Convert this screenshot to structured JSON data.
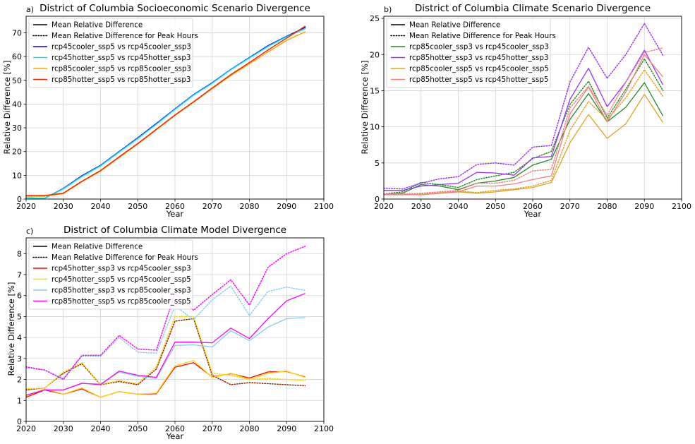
{
  "chart_data": [
    {
      "type": "line",
      "panel_label": "a)",
      "title": "District of Columbia Socioeconomic Scenario Divergence",
      "xlabel": "Year",
      "ylabel": "Relative Difference [%]",
      "xlim": [
        2020,
        2100
      ],
      "ylim": [
        0,
        77
      ],
      "xticks": [
        2020,
        2030,
        2040,
        2050,
        2060,
        2070,
        2080,
        2090,
        2100
      ],
      "yticks": [
        0,
        10,
        20,
        30,
        40,
        50,
        60,
        70
      ],
      "grid": true,
      "legend_position": "upper-left",
      "legend": [
        {
          "label": "Mean Relative Difference",
          "color": "#000000",
          "style": "solid"
        },
        {
          "label": "Mean Relative Difference for Peak Hours",
          "color": "#000000",
          "style": "dotted"
        },
        {
          "label": "rcp45cooler_ssp5 vs rcp45cooler_ssp3",
          "color": "#0000ff",
          "style": "solid"
        },
        {
          "label": "rcp45hotter_ssp5 vs rcp45hotter_ssp3",
          "color": "#00e5ee",
          "style": "solid"
        },
        {
          "label": "rcp85cooler_ssp5 vs rcp85cooler_ssp3",
          "color": "#ffa500",
          "style": "solid"
        },
        {
          "label": "rcp85hotter_ssp5 vs rcp85hotter_ssp3",
          "color": "#ff2200",
          "style": "solid"
        }
      ],
      "x": [
        2020,
        2025,
        2030,
        2035,
        2040,
        2045,
        2050,
        2055,
        2060,
        2065,
        2070,
        2075,
        2080,
        2085,
        2090,
        2095
      ],
      "series": [
        {
          "name": "rcp45cooler_ssp5 vs rcp45cooler_ssp3",
          "color": "#0000ff",
          "style": "solid",
          "values": [
            0.5,
            0.3,
            4.5,
            9.8,
            14.2,
            20.0,
            25.8,
            31.8,
            38.0,
            44.0,
            49.0,
            54.6,
            59.6,
            64.6,
            68.6,
            72.3
          ]
        },
        {
          "name": "rcp45cooler_ssp5 vs rcp45cooler_ssp3 (peak)",
          "color": "#0000ff",
          "style": "dotted",
          "values": [
            0.5,
            0.3,
            4.5,
            9.8,
            14.2,
            20.0,
            25.8,
            31.8,
            38.0,
            44.0,
            49.0,
            54.6,
            59.6,
            64.6,
            68.6,
            72.3
          ]
        },
        {
          "name": "rcp45hotter_ssp5 vs rcp45hotter_ssp3",
          "color": "#00e5ee",
          "style": "solid",
          "values": [
            0.5,
            0.3,
            4.3,
            9.5,
            14.0,
            19.8,
            25.5,
            31.5,
            37.8,
            43.8,
            48.8,
            54.5,
            59.4,
            64.3,
            68.4,
            71.8
          ]
        },
        {
          "name": "rcp45hotter_ssp5 vs rcp45hotter_ssp3 (peak)",
          "color": "#00e5ee",
          "style": "dotted",
          "values": [
            0.5,
            0.3,
            4.3,
            9.5,
            14.0,
            19.8,
            25.5,
            31.5,
            37.8,
            43.8,
            48.8,
            54.5,
            59.4,
            64.3,
            68.4,
            71.8
          ]
        },
        {
          "name": "rcp85cooler_ssp5 vs rcp85cooler_ssp3",
          "color": "#ffa500",
          "style": "solid",
          "values": [
            1.2,
            1.2,
            2.3,
            7.3,
            11.8,
            17.5,
            23.2,
            29.2,
            35.2,
            40.8,
            46.5,
            52.0,
            57.0,
            62.0,
            66.8,
            70.5
          ]
        },
        {
          "name": "rcp85cooler_ssp5 vs rcp85cooler_ssp3 (peak)",
          "color": "#ffa500",
          "style": "dotted",
          "values": [
            1.2,
            1.2,
            2.3,
            7.3,
            11.8,
            17.5,
            23.2,
            29.2,
            35.2,
            40.8,
            46.5,
            52.0,
            57.0,
            62.0,
            66.8,
            70.5
          ]
        },
        {
          "name": "rcp85hotter_ssp5 vs rcp85hotter_ssp3",
          "color": "#ff2200",
          "style": "solid",
          "values": [
            1.5,
            1.5,
            2.5,
            7.5,
            12.0,
            17.8,
            23.4,
            29.4,
            35.4,
            41.0,
            46.8,
            52.4,
            57.5,
            62.8,
            67.8,
            72.8
          ]
        },
        {
          "name": "rcp85hotter_ssp5 vs rcp85hotter_ssp3 (peak)",
          "color": "#ff2200",
          "style": "dotted",
          "values": [
            1.5,
            1.5,
            2.5,
            7.5,
            12.0,
            17.8,
            23.4,
            29.4,
            35.4,
            41.0,
            46.8,
            52.4,
            57.5,
            62.8,
            67.8,
            72.8
          ]
        }
      ]
    },
    {
      "type": "line",
      "panel_label": "b)",
      "title": "District of Columbia Climate Scenario Divergence",
      "xlabel": "Year",
      "ylabel": "Relative Difference [%]",
      "xlim": [
        2020,
        2100
      ],
      "ylim": [
        0,
        25.3
      ],
      "xticks": [
        2020,
        2030,
        2040,
        2050,
        2060,
        2070,
        2080,
        2090,
        2100
      ],
      "yticks": [
        0,
        5,
        10,
        15,
        20,
        25
      ],
      "grid": true,
      "legend_position": "upper-left",
      "legend": [
        {
          "label": "Mean Relative Difference",
          "color": "#000000",
          "style": "solid"
        },
        {
          "label": "Mean Relative Difference for Peak Hours",
          "color": "#000000",
          "style": "dotted"
        },
        {
          "label": "rcp85cooler_ssp3 vs rcp45cooler_ssp3",
          "color": "#228b22",
          "style": "solid"
        },
        {
          "label": "rcp85hotter_ssp3 vs rcp45hotter_ssp3",
          "color": "#9b30ff",
          "style": "solid"
        },
        {
          "label": "rcp85cooler_ssp5 vs rcp45cooler_ssp5",
          "color": "#daa520",
          "style": "solid"
        },
        {
          "label": "rcp85hotter_ssp5 vs rcp45hotter_ssp5",
          "color": "#f08080",
          "style": "solid"
        }
      ],
      "x": [
        2020,
        2025,
        2030,
        2035,
        2040,
        2045,
        2050,
        2055,
        2060,
        2065,
        2070,
        2075,
        2080,
        2085,
        2090,
        2095
      ],
      "series": [
        {
          "name": "rcp85cooler_ssp3 vs rcp45cooler_ssp3",
          "color": "#228b22",
          "style": "solid",
          "values": [
            0.6,
            0.8,
            2.0,
            1.8,
            1.3,
            2.2,
            2.5,
            3.0,
            4.7,
            5.5,
            11.0,
            14.6,
            10.7,
            12.7,
            16.1,
            11.5
          ]
        },
        {
          "name": "rcp85cooler_ssp3 vs rcp45cooler_ssp3 (peak)",
          "color": "#228b22",
          "style": "dotted",
          "values": [
            0.7,
            1.0,
            2.3,
            2.0,
            1.6,
            2.7,
            3.2,
            3.7,
            5.6,
            6.6,
            13.1,
            16.3,
            11.2,
            15.2,
            19.4,
            15.0
          ]
        },
        {
          "name": "rcp85hotter_ssp3 vs rcp45hotter_ssp3",
          "color": "#9b30ff",
          "style": "solid",
          "values": [
            1.2,
            1.2,
            1.8,
            2.0,
            2.2,
            3.7,
            3.6,
            3.3,
            5.7,
            5.9,
            13.8,
            18.1,
            12.8,
            16.2,
            20.6,
            15.8
          ]
        },
        {
          "name": "rcp85hotter_ssp3 vs rcp45hotter_ssp3 (peak)",
          "color": "#9b30ff",
          "style": "dotted",
          "values": [
            1.5,
            1.4,
            2.2,
            2.8,
            3.1,
            4.8,
            5.0,
            4.7,
            7.2,
            7.4,
            16.2,
            21.0,
            16.7,
            20.0,
            24.3,
            19.9
          ]
        },
        {
          "name": "rcp85cooler_ssp5 vs rcp45cooler_ssp5",
          "color": "#daa520",
          "style": "solid",
          "values": [
            0.6,
            0.6,
            0.6,
            0.8,
            1.0,
            0.8,
            1.0,
            1.3,
            1.6,
            2.3,
            7.8,
            11.7,
            8.4,
            10.4,
            14.5,
            10.6
          ]
        },
        {
          "name": "rcp85cooler_ssp5 vs rcp45cooler_ssp5 (peak)",
          "color": "#daa520",
          "style": "dotted",
          "values": [
            0.6,
            0.6,
            0.7,
            0.9,
            1.1,
            0.9,
            1.2,
            1.4,
            1.8,
            2.6,
            9.5,
            13.5,
            11.0,
            14.0,
            17.9,
            14.2
          ]
        },
        {
          "name": "rcp85hotter_ssp5 vs rcp45hotter_ssp5",
          "color": "#f08080",
          "style": "solid",
          "values": [
            0.6,
            0.6,
            0.6,
            0.8,
            1.0,
            1.8,
            1.8,
            2.1,
            2.7,
            3.2,
            11.8,
            15.5,
            10.7,
            14.8,
            20.0,
            16.9
          ]
        },
        {
          "name": "rcp85hotter_ssp5 vs rcp45hotter_ssp5 (peak)",
          "color": "#f08080",
          "style": "dotted",
          "values": [
            0.7,
            0.7,
            0.8,
            1.0,
            1.2,
            2.2,
            2.2,
            2.6,
            3.9,
            4.1,
            12.6,
            15.6,
            11.6,
            16.2,
            20.3,
            20.9
          ]
        }
      ]
    },
    {
      "type": "line",
      "panel_label": "c)",
      "title": "District of Columbia Climate Model Divergence",
      "xlabel": "Year",
      "ylabel": "Relative Difference [%]",
      "xlim": [
        2020,
        2100
      ],
      "ylim": [
        0,
        8.75
      ],
      "xticks": [
        2020,
        2030,
        2040,
        2050,
        2060,
        2070,
        2080,
        2090,
        2100
      ],
      "yticks": [
        0,
        1,
        2,
        3,
        4,
        5,
        6,
        7,
        8
      ],
      "grid": true,
      "legend_position": "upper-left",
      "legend": [
        {
          "label": "Mean Relative Difference",
          "color": "#000000",
          "style": "solid"
        },
        {
          "label": "Mean Relative Difference for Peak Hours",
          "color": "#000000",
          "style": "dotted"
        },
        {
          "label": "rcp45hotter_ssp3 vs rcp45cooler_ssp3",
          "color": "#ff0000",
          "style": "solid"
        },
        {
          "label": "rcp45hotter_ssp5 vs rcp45cooler_ssp5",
          "color": "#ffd700",
          "style": "solid"
        },
        {
          "label": "rcp85hotter_ssp3 vs rcp85cooler_ssp3",
          "color": "#87ceeb",
          "style": "solid"
        },
        {
          "label": "rcp85hotter_ssp5 vs rcp85cooler_ssp5",
          "color": "#ff00ff",
          "style": "solid"
        }
      ],
      "x": [
        2020,
        2025,
        2030,
        2035,
        2040,
        2045,
        2050,
        2055,
        2060,
        2065,
        2070,
        2075,
        2080,
        2085,
        2090,
        2095
      ],
      "series": [
        {
          "name": "rcp45hotter_ssp3 vs rcp45cooler_ssp3",
          "color": "#ff0000",
          "style": "solid",
          "values": [
            1.15,
            1.5,
            1.3,
            1.55,
            1.15,
            1.42,
            1.3,
            1.32,
            2.58,
            2.8,
            2.12,
            2.28,
            2.07,
            2.36,
            2.38,
            2.12
          ]
        },
        {
          "name": "rcp45hotter_ssp3 vs rcp45cooler_ssp3 (peak)",
          "color": "#8b2500",
          "style": "dotted",
          "values": [
            1.5,
            1.6,
            2.3,
            2.75,
            1.75,
            1.9,
            1.75,
            2.5,
            4.78,
            4.9,
            2.2,
            1.75,
            1.85,
            1.8,
            1.75,
            1.7
          ]
        },
        {
          "name": "rcp45hotter_ssp5 vs rcp45cooler_ssp5",
          "color": "#ffd700",
          "style": "solid",
          "values": [
            1.2,
            1.55,
            1.3,
            1.6,
            1.15,
            1.42,
            1.3,
            1.35,
            2.65,
            2.9,
            2.1,
            2.3,
            2.0,
            2.3,
            2.4,
            2.1
          ]
        },
        {
          "name": "rcp45hotter_ssp5 vs rcp45cooler_ssp5 (peak)",
          "color": "#ffd700",
          "style": "dotted",
          "values": [
            1.55,
            1.6,
            2.35,
            2.8,
            1.75,
            1.95,
            1.8,
            2.6,
            5.0,
            5.0,
            2.3,
            2.2,
            2.0,
            2.05,
            2.0,
            1.95
          ]
        },
        {
          "name": "rcp85hotter_ssp3 vs rcp85cooler_ssp3",
          "color": "#87ceeb",
          "style": "solid",
          "values": [
            1.25,
            1.5,
            1.5,
            1.8,
            1.8,
            2.35,
            2.15,
            2.05,
            3.62,
            3.65,
            3.55,
            4.32,
            3.85,
            4.5,
            4.9,
            4.95
          ]
        },
        {
          "name": "rcp85hotter_ssp3 vs rcp85cooler_ssp3 (peak)",
          "color": "#87ceeb",
          "style": "dotted",
          "values": [
            2.55,
            2.45,
            2.05,
            3.1,
            3.1,
            4.0,
            3.3,
            3.25,
            5.5,
            4.85,
            5.8,
            6.45,
            5.05,
            6.2,
            6.4,
            6.25
          ]
        },
        {
          "name": "rcp85hotter_ssp5 vs rcp85cooler_ssp5",
          "color": "#ff00ff",
          "style": "solid",
          "values": [
            1.25,
            1.5,
            1.5,
            1.82,
            1.75,
            2.4,
            2.2,
            2.1,
            3.78,
            3.78,
            3.75,
            4.45,
            3.95,
            4.9,
            5.75,
            6.1
          ]
        },
        {
          "name": "rcp85hotter_ssp5 vs rcp85cooler_ssp5 (peak)",
          "color": "#ff00ff",
          "style": "dotted",
          "values": [
            2.6,
            2.45,
            2.0,
            3.15,
            3.15,
            4.1,
            3.45,
            3.4,
            6.1,
            5.3,
            6.05,
            6.75,
            5.55,
            7.35,
            8.0,
            8.35
          ]
        }
      ]
    }
  ]
}
